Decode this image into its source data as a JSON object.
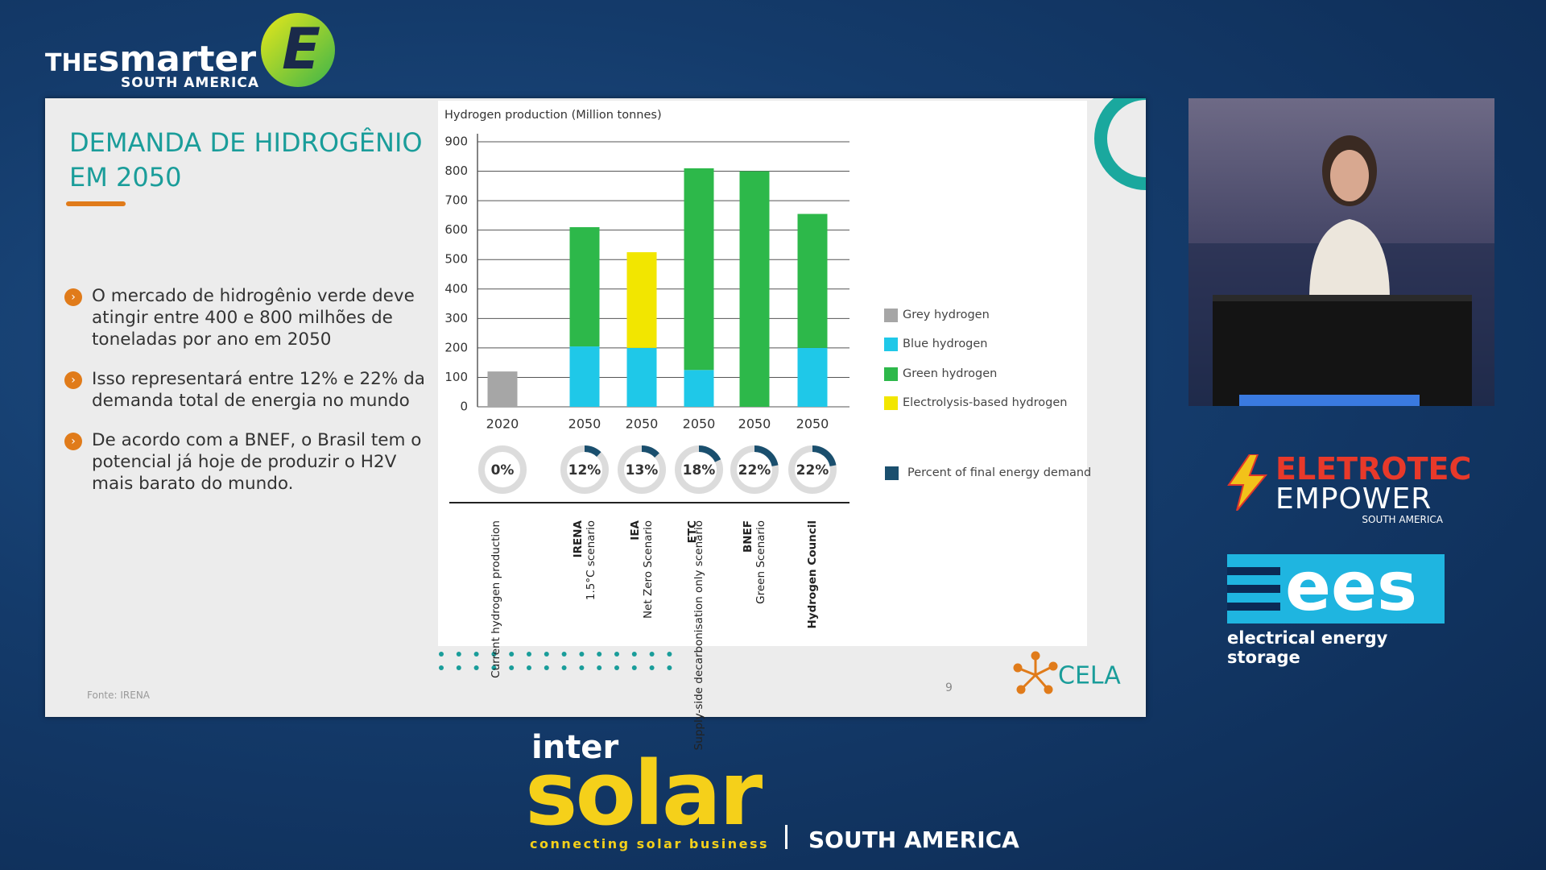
{
  "branding": {
    "the": "THE",
    "smarter": "smarter",
    "e": "E",
    "region": "SOUTH AMERICA",
    "eletrotec": "ELETROTEC",
    "empower": "EMPOWER",
    "eletrotec_region": "SOUTH AMERICA",
    "ees": "ees",
    "ees_caption": "electrical energy storage",
    "inter": "inter",
    "solar": "solar",
    "tagline": "connecting solar business",
    "intersolar_region": "SOUTH AMERICA"
  },
  "slide": {
    "title": "DEMANDA DE HIDROGÊNIO EM 2050",
    "bullets": [
      "O mercado de hidrogênio verde deve atingir entre 400 e 800 milhões de toneladas por ano em 2050",
      "Isso representará entre 12% e 22% da demanda total de energia no mundo",
      "De acordo com a BNEF, o Brasil tem o potencial já hoje de produzir o H2V mais barato do mundo."
    ],
    "source": "Fonte: IRENA",
    "page_number": "9",
    "logo": "CELA"
  },
  "chart_data": {
    "type": "stacked_bar",
    "y_label": "Hydrogen production (Million tonnes)",
    "categories": [
      "2020",
      "2050",
      "2050",
      "2050",
      "2050",
      "2050"
    ],
    "scenarios": [
      {
        "name": "",
        "detail": "Current hydrogen production"
      },
      {
        "name": "IRENA",
        "detail": "1.5°C scenario"
      },
      {
        "name": "IEA",
        "detail": "Net Zero Scenario"
      },
      {
        "name": "ETC",
        "detail": "Supply-side decarbonisation only scenario"
      },
      {
        "name": "BNEF",
        "detail": "Green Scenario"
      },
      {
        "name": "Hydrogen Council",
        "detail": ""
      }
    ],
    "series": [
      {
        "name": "Grey hydrogen",
        "color": "#a6a6a6",
        "values": [
          120,
          0,
          0,
          0,
          0,
          0
        ]
      },
      {
        "name": "Blue hydrogen",
        "color": "#1fc8e8",
        "values": [
          0,
          205,
          200,
          125,
          0,
          200
        ]
      },
      {
        "name": "Green hydrogen",
        "color": "#2db84a",
        "values": [
          0,
          405,
          0,
          685,
          800,
          455
        ]
      },
      {
        "name": "Electrolysis-based hydrogen",
        "color": "#f2e600",
        "values": [
          0,
          0,
          325,
          0,
          0,
          0
        ]
      }
    ],
    "percent_series": {
      "name": "Percent of final energy demand",
      "color": "#1a4f6e",
      "values": [
        0,
        12,
        13,
        18,
        22,
        22
      ],
      "value_labels": [
        "0%",
        "12%",
        "13%",
        "18%",
        "22%",
        "22%"
      ]
    },
    "ylim": [
      0,
      900
    ],
    "yticks": [
      0,
      100,
      200,
      300,
      400,
      500,
      600,
      700,
      800,
      900
    ],
    "grid": true
  }
}
